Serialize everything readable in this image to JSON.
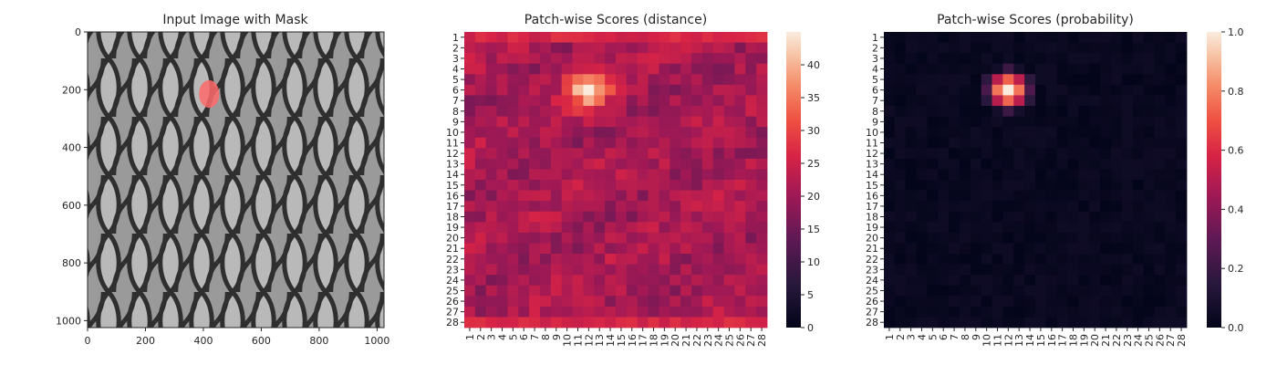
{
  "chart_data": [
    {
      "type": "image",
      "title": "Input Image with Mask",
      "x_ticks": [
        0,
        200,
        400,
        600,
        800,
        1000
      ],
      "y_ticks": [
        0,
        200,
        400,
        600,
        800,
        1000
      ],
      "xlim": [
        0,
        1024
      ],
      "ylim": [
        0,
        1024
      ],
      "mask": {
        "cx": 420,
        "cy": 215,
        "rx": 35,
        "ry": 48,
        "color": "#ff6a6a"
      }
    },
    {
      "type": "heatmap",
      "title": "Patch-wise Scores (distance)",
      "rows": 28,
      "cols": 28,
      "row_labels": [
        "1",
        "2",
        "3",
        "4",
        "5",
        "6",
        "7",
        "8",
        "9",
        "10",
        "11",
        "12",
        "13",
        "14",
        "15",
        "16",
        "17",
        "18",
        "19",
        "20",
        "21",
        "22",
        "23",
        "24",
        "25",
        "26",
        "27",
        "28"
      ],
      "col_labels": [
        "1",
        "2",
        "3",
        "4",
        "5",
        "6",
        "7",
        "8",
        "9",
        "10",
        "11",
        "12",
        "13",
        "14",
        "15",
        "16",
        "17",
        "18",
        "19",
        "20",
        "21",
        "22",
        "23",
        "24",
        "25",
        "26",
        "27",
        "28"
      ],
      "vmin": 0,
      "vmax": 45,
      "colorbar_ticks": [
        0,
        5,
        10,
        15,
        20,
        25,
        30,
        35,
        40
      ],
      "colormap": "rocket",
      "hotspot": {
        "row": 6,
        "col": 12,
        "peak": 44
      }
    },
    {
      "type": "heatmap",
      "title": "Patch-wise Scores (probability)",
      "rows": 28,
      "cols": 28,
      "row_labels": [
        "1",
        "2",
        "3",
        "4",
        "5",
        "6",
        "7",
        "8",
        "9",
        "10",
        "11",
        "12",
        "13",
        "14",
        "15",
        "16",
        "17",
        "18",
        "19",
        "20",
        "21",
        "22",
        "23",
        "24",
        "25",
        "26",
        "27",
        "28"
      ],
      "col_labels": [
        "1",
        "2",
        "3",
        "4",
        "5",
        "6",
        "7",
        "8",
        "9",
        "10",
        "11",
        "12",
        "13",
        "14",
        "15",
        "16",
        "17",
        "18",
        "19",
        "20",
        "21",
        "22",
        "23",
        "24",
        "25",
        "26",
        "27",
        "28"
      ],
      "vmin": 0,
      "vmax": 1,
      "colorbar_ticks": [
        "0.0",
        "0.2",
        "0.4",
        "0.6",
        "0.8",
        "1.0"
      ],
      "colormap": "rocket",
      "hotspot": {
        "row": 6,
        "col": 12,
        "peak": 1.0
      }
    }
  ]
}
